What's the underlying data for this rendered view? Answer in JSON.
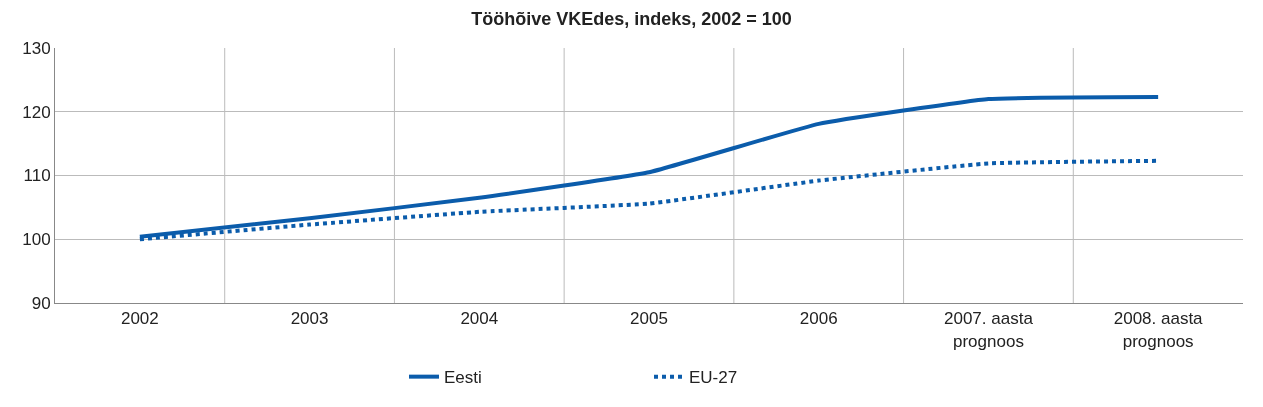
{
  "chart_data": {
    "type": "line",
    "title": "Tööhõive VKEdes, indeks, 2002 = 100",
    "categories": [
      "2002",
      "2003",
      "2004",
      "2005",
      "2006",
      "2007. aasta\nprognoos",
      "2008. aasta\nprognoos"
    ],
    "series": [
      {
        "name": "Eesti",
        "color": "#0b5cab",
        "line_style": "solid",
        "values": [
          100.4,
          103.3,
          106.5,
          110.5,
          118.1,
          122.0,
          122.3
        ]
      },
      {
        "name": "EU-27",
        "color": "#0b5cab",
        "line_style": "dotted",
        "values": [
          100.0,
          102.3,
          104.3,
          105.6,
          109.2,
          111.9,
          112.3
        ]
      }
    ],
    "ylim": [
      90,
      130
    ],
    "yticks": [
      90,
      100,
      110,
      120,
      130
    ],
    "grid": true,
    "legend": "bottom",
    "marker": "none"
  }
}
